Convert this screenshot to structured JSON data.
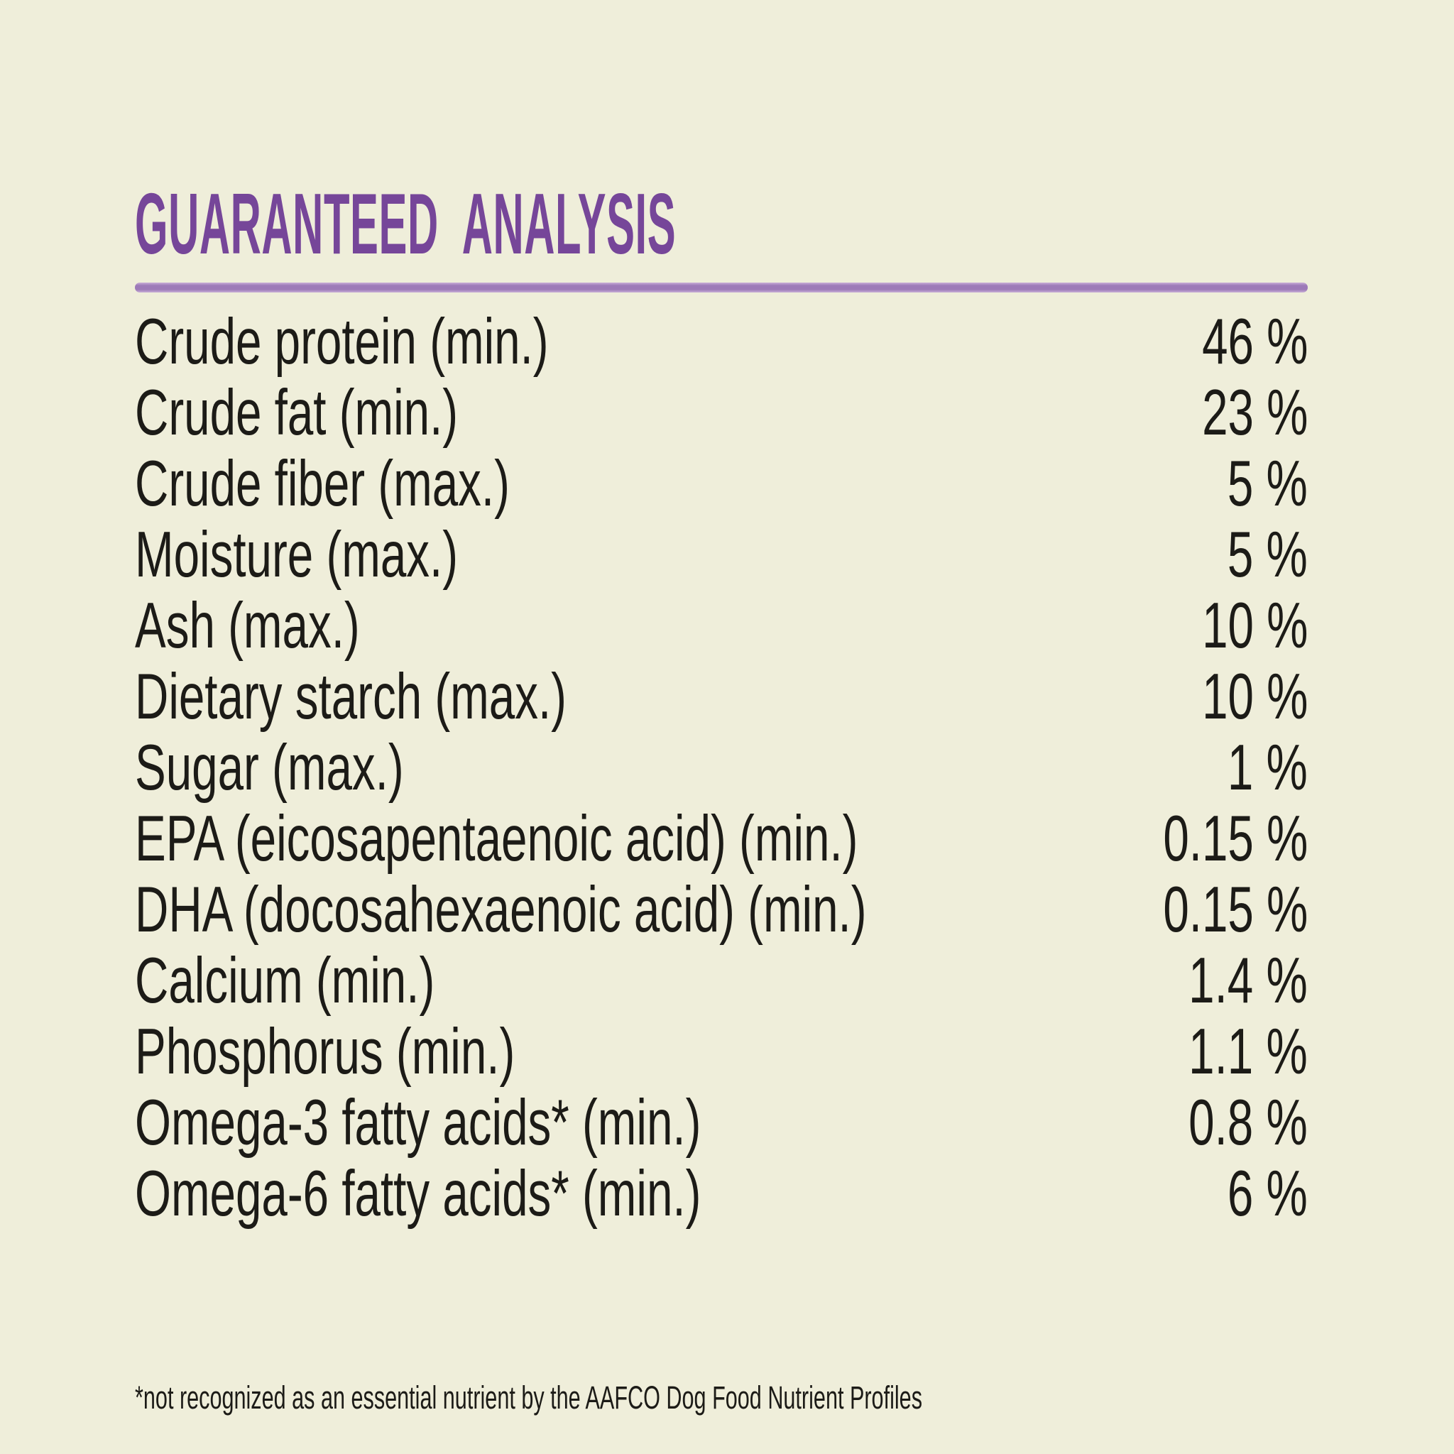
{
  "label": {
    "title": "GUARANTEED ANALYSIS",
    "rows": [
      {
        "name": "Crude protein (min.)",
        "value": "46 %"
      },
      {
        "name": "Crude fat (min.)",
        "value": "23 %"
      },
      {
        "name": "Crude fiber (max.)",
        "value": "5 %"
      },
      {
        "name": "Moisture (max.)",
        "value": "5 %"
      },
      {
        "name": "Ash (max.)",
        "value": "10 %"
      },
      {
        "name": "Dietary starch (max.)",
        "value": "10 %"
      },
      {
        "name": "Sugar (max.)",
        "value": "1 %"
      },
      {
        "name": "EPA (eicosapentaenoic acid) (min.)",
        "value": "0.15 %"
      },
      {
        "name": "DHA (docosahexaenoic acid) (min.)",
        "value": "0.15 %"
      },
      {
        "name": "Calcium (min.)",
        "value": "1.4 %"
      },
      {
        "name": "Phosphorus (min.)",
        "value": "1.1 %"
      },
      {
        "name": "Omega-3 fatty acids* (min.)",
        "value": "0.8 %"
      },
      {
        "name": "Omega-6 fatty acids* (min.)",
        "value": "6 %"
      }
    ],
    "footnote": "*not recognized as an essential nutrient by the AAFCO Dog Food Nutrient Profiles",
    "colors": {
      "background": "#efeeda",
      "title": "#764699",
      "divider": "#9d7ab8",
      "divider_edge": "#c9afd8",
      "text": "#1c1b17"
    }
  }
}
